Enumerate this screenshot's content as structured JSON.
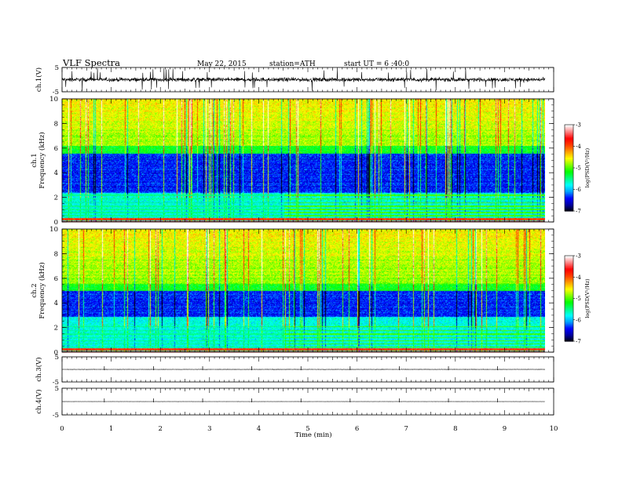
{
  "header": {
    "title": "VLF  Spectra",
    "date": "May 22, 2015",
    "station": "station=ATH",
    "start": "start  UT  =   6  :40:0"
  },
  "chart_data": [
    {
      "type": "line",
      "name": "ch1-waveform",
      "ylabel": "ch.1(V)",
      "ylim": [
        -5,
        5
      ],
      "yticks": [
        "5",
        "-5"
      ],
      "xlim": [
        0,
        10
      ],
      "mean": 0,
      "noise_amplitude": 1.2,
      "spike_amplitude": 4.6
    },
    {
      "type": "heatmap",
      "name": "ch1-spectrogram",
      "ylabel": "ch.1\nFrequency  (kHz)",
      "ylabel_lines": [
        "ch.1",
        "Frequency  (kHz)"
      ],
      "ylim": [
        0,
        10
      ],
      "yticks": [
        "0",
        "2",
        "4",
        "6",
        "8",
        "10"
      ],
      "xlim": [
        0,
        9.82
      ],
      "colorbar": {
        "label": "log(PSD(V²/Hz)",
        "range": [
          -7,
          -3
        ],
        "ticks": [
          "-3",
          "-4",
          "-5",
          "-6",
          "-7"
        ]
      },
      "dark_band_khz": [
        2.4,
        5.6
      ],
      "low_freq_lines_khz": [
        0.3,
        0.55,
        0.8,
        1.05,
        1.3,
        1.6,
        1.9,
        2.2
      ]
    },
    {
      "type": "heatmap",
      "name": "ch2-spectrogram",
      "ylabel": "ch.2\nFrequency  (kHz)",
      "ylabel_lines": [
        "ch.2",
        "Frequency  (kHz)"
      ],
      "ylim": [
        0,
        10
      ],
      "yticks": [
        "0",
        "2",
        "4",
        "6",
        "8",
        "10"
      ],
      "xlim": [
        0,
        9.82
      ],
      "colorbar": {
        "label": "log(PSD(V²/Hz)",
        "range": [
          -7,
          -3
        ],
        "ticks": [
          "-3",
          "-4",
          "-5",
          "-6",
          "-7"
        ]
      },
      "dark_band_khz": [
        2.9,
        5.0
      ],
      "low_freq_lines_khz": [
        0.2,
        0.45,
        0.7,
        0.95,
        1.2,
        1.5,
        1.8,
        2.1
      ]
    },
    {
      "type": "line",
      "name": "ch3-waveform",
      "ylabel": "ch.3(V)",
      "ylim": [
        -5,
        5
      ],
      "yticks": [
        "5",
        "-5"
      ],
      "xlim": [
        0,
        10
      ],
      "mean": 0,
      "noise_amplitude": 0.1
    },
    {
      "type": "line",
      "name": "ch4-waveform",
      "ylabel": "ch.4(V)",
      "ylim": [
        -5,
        5
      ],
      "yticks": [
        "5",
        "-5"
      ],
      "xlim": [
        0,
        10
      ],
      "mean": 0,
      "noise_amplitude": 0.05
    }
  ],
  "x_axis": {
    "label": "Time  (min)",
    "ticks": [
      "0",
      "1",
      "2",
      "3",
      "4",
      "5",
      "6",
      "7",
      "8",
      "9",
      "10"
    ],
    "range": [
      0,
      10
    ]
  },
  "colors": {
    "colormap": [
      "#000000",
      "#0000a0",
      "#0000ff",
      "#00a0ff",
      "#00ffff",
      "#00ff80",
      "#00ff00",
      "#80ff00",
      "#ffff00",
      "#ffa000",
      "#ff4000",
      "#ff0000",
      "#ff8080",
      "#ffffff"
    ]
  }
}
